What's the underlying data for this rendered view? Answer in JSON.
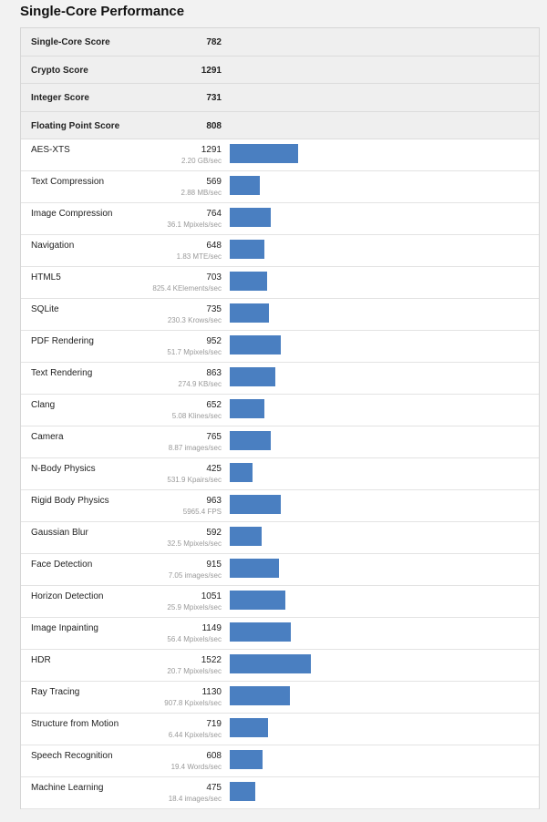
{
  "title": "Single-Core Performance",
  "accent_color": "#4a7fc1",
  "summary": [
    {
      "label": "Single-Core Score",
      "value": "782"
    },
    {
      "label": "Crypto Score",
      "value": "1291"
    },
    {
      "label": "Integer Score",
      "value": "731"
    },
    {
      "label": "Floating Point Score",
      "value": "808"
    }
  ],
  "chart_data": {
    "type": "bar",
    "orientation": "horizontal",
    "categories": [
      "AES-XTS",
      "Text Compression",
      "Image Compression",
      "Navigation",
      "HTML5",
      "SQLite",
      "PDF Rendering",
      "Text Rendering",
      "Clang",
      "Camera",
      "N-Body Physics",
      "Rigid Body Physics",
      "Gaussian Blur",
      "Face Detection",
      "Horizon Detection",
      "Image Inpainting",
      "HDR",
      "Ray Tracing",
      "Structure from Motion",
      "Speech Recognition",
      "Machine Learning"
    ],
    "values": [
      1291,
      569,
      764,
      648,
      703,
      735,
      952,
      863,
      652,
      765,
      425,
      963,
      592,
      915,
      1051,
      1149,
      1522,
      1130,
      719,
      608,
      475
    ],
    "details": [
      "2.20 GB/sec",
      "2.88 MB/sec",
      "36.1 Mpixels/sec",
      "1.83 MTE/sec",
      "825.4 KElements/sec",
      "230.3 Krows/sec",
      "51.7 Mpixels/sec",
      "274.9 KB/sec",
      "5.08 Klines/sec",
      "8.87 images/sec",
      "531.9 Kpairs/sec",
      "5965.4 FPS",
      "32.5 Mpixels/sec",
      "7.05 images/sec",
      "25.9 Mpixels/sec",
      "56.4 Mpixels/sec",
      "20.7 Mpixels/sec",
      "907.8 Kpixels/sec",
      "6.44 Kpixels/sec",
      "19.4 Words/sec",
      "18.4 images/sec"
    ],
    "xlim": [
      0,
      1522
    ],
    "grid": false
  }
}
